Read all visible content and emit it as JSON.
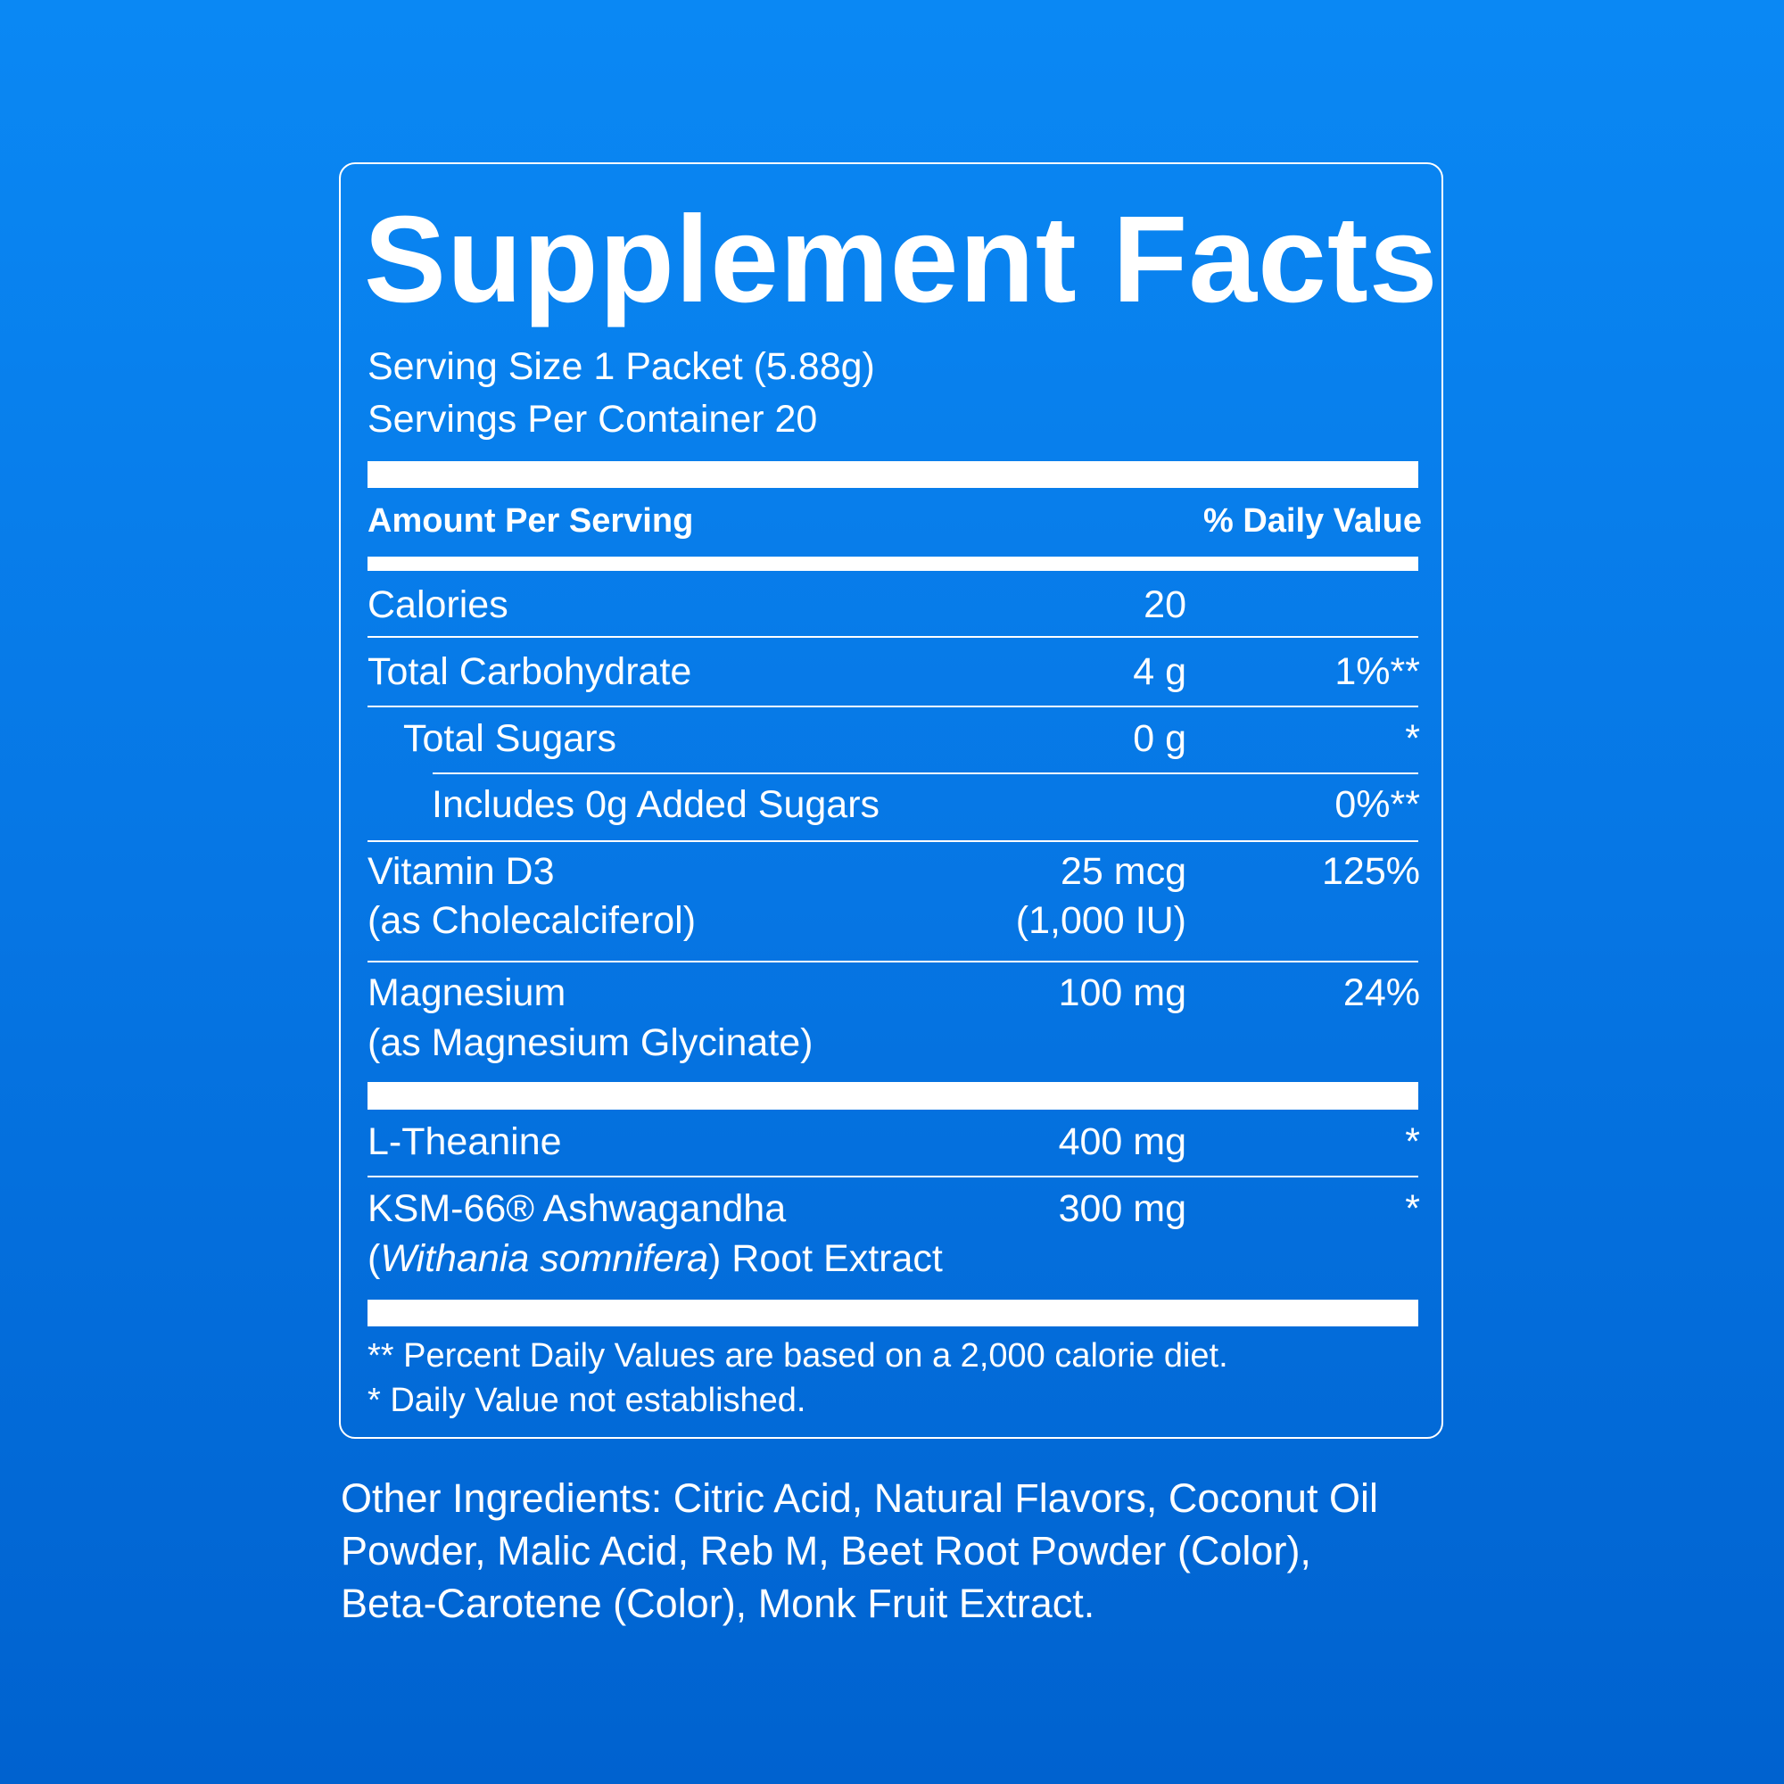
{
  "title": "Supplement Facts",
  "serving_size": "Serving Size 1 Packet (5.88g)",
  "servings_per_container": "Servings Per Container 20",
  "header": {
    "amount_per_serving": "Amount Per Serving",
    "daily_value": "% Daily Value"
  },
  "rows": [
    {
      "name": "Calories",
      "amount": "20"
    },
    {
      "name": "Total Carbohydrate",
      "amount": "4 g",
      "dv": "1%**"
    },
    {
      "name": "Total Sugars",
      "amount": "0 g",
      "dv": "*"
    },
    {
      "name": "Includes 0g Added Sugars",
      "dv": "0%**"
    },
    {
      "name": "Vitamin D3",
      "note": "(as Cholecalciferol)",
      "amount": "25 mcg",
      "amount_note": "(1,000 IU)",
      "dv": "125%"
    },
    {
      "name": "Magnesium",
      "note": "(as Magnesium Glycinate)",
      "amount": "100 mg",
      "dv": "24%"
    },
    {
      "name": "L-Theanine",
      "amount": "400 mg",
      "dv": "*"
    },
    {
      "name": "KSM-66® Ashwagandha",
      "note": [
        "(",
        "Withania somnifera",
        ") Root Extract"
      ],
      "amount": "300 mg",
      "dv": "*"
    }
  ],
  "footnotes": [
    "** Percent Daily Values are based on a 2,000 calorie diet.",
    "* Daily Value not established."
  ],
  "other_ingredients": [
    "Other Ingredients: Citric Acid, Natural Flavors, Coconut Oil",
    "Powder, Malic Acid, Reb M, Beet Root Powder (Color),",
    "Beta-Carotene (Color), Monk Fruit Extract."
  ]
}
